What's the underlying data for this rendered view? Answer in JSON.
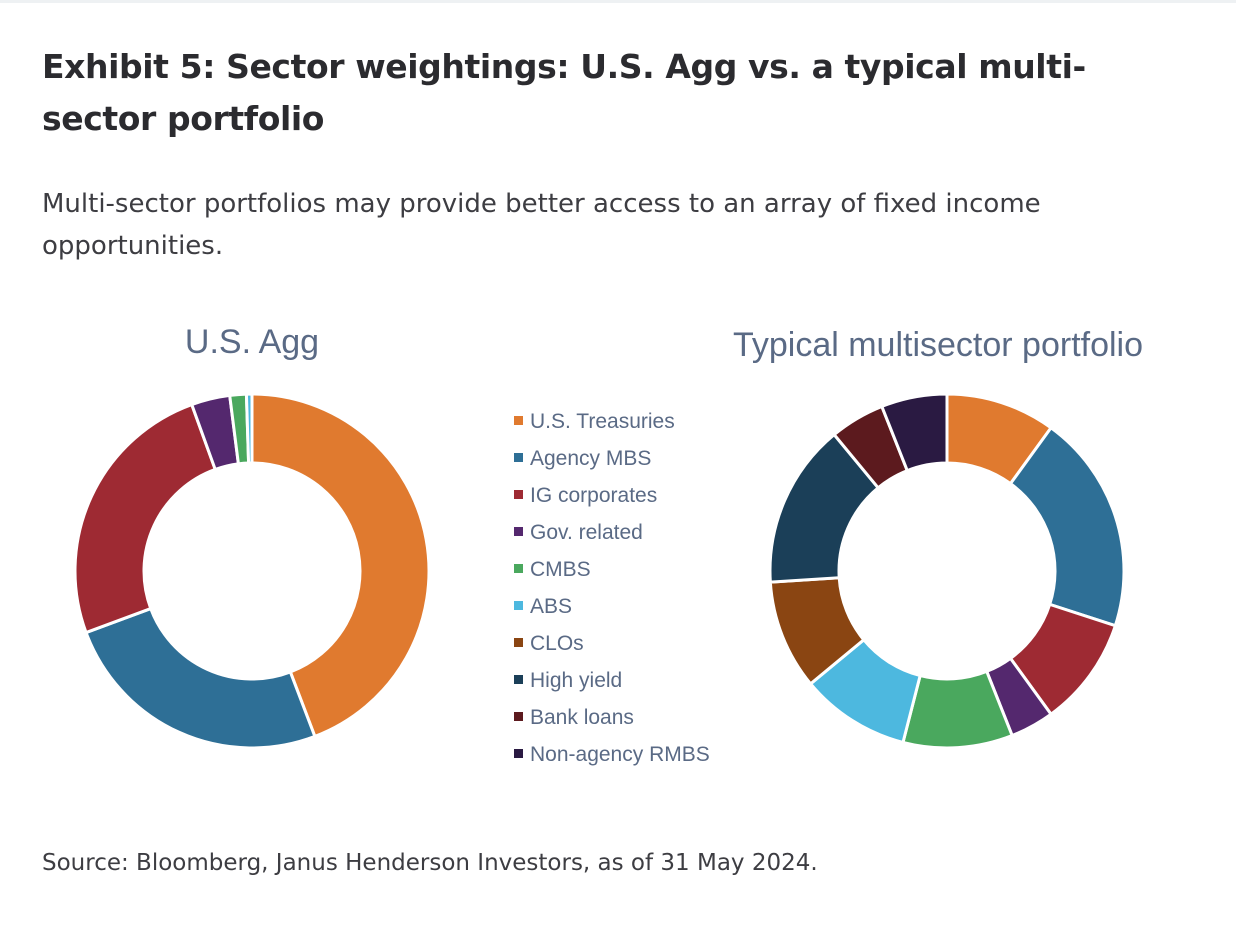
{
  "header": {
    "title": "Exhibit 5: Sector weightings: U.S. Agg vs. a typical multi-sector portfolio",
    "subtitle": "Multi-sector portfolios may provide better access to an array of fixed income opportunities."
  },
  "footer": {
    "source": "Source: Bloomberg, Janus Henderson Investors, as of 31 May 2024."
  },
  "chart_data": [
    {
      "type": "pie",
      "subtype": "donut",
      "title": "U.S. Agg",
      "categories": [
        "U.S. Treasuries",
        "Agency MBS",
        "IG corporates",
        "Gov. related",
        "CMBS",
        "ABS"
      ],
      "values": [
        44,
        25,
        25,
        3.5,
        1.5,
        0.5
      ],
      "colors": [
        "#e07a2f",
        "#2e6f96",
        "#9e2a33",
        "#54286e",
        "#4aa85e",
        "#4db8df"
      ]
    },
    {
      "type": "pie",
      "subtype": "donut",
      "title": "Typical multisector portfolio",
      "categories": [
        "U.S. Treasuries",
        "Agency MBS",
        "IG corporates",
        "Gov. related",
        "CMBS",
        "ABS",
        "CLOs",
        "High yield",
        "Bank loans",
        "Non-agency RMBS"
      ],
      "values": [
        10,
        20,
        10,
        4,
        10,
        10,
        10,
        15,
        5,
        6
      ],
      "colors": [
        "#e07a2f",
        "#2e6f96",
        "#9e2a33",
        "#54286e",
        "#4aa85e",
        "#4db8df",
        "#8a4512",
        "#1b3f58",
        "#5c1a1e",
        "#2a1a42"
      ]
    }
  ],
  "legend": {
    "placement": "center",
    "items": [
      {
        "label": "U.S. Treasuries",
        "color": "#e07a2f"
      },
      {
        "label": "Agency MBS",
        "color": "#2e6f96"
      },
      {
        "label": "IG corporates",
        "color": "#9e2a33"
      },
      {
        "label": "Gov. related",
        "color": "#54286e"
      },
      {
        "label": "CMBS",
        "color": "#4aa85e"
      },
      {
        "label": "ABS",
        "color": "#4db8df"
      },
      {
        "label": "CLOs",
        "color": "#8a4512"
      },
      {
        "label": "High yield",
        "color": "#1b3f58"
      },
      {
        "label": "Bank loans",
        "color": "#5c1a1e"
      },
      {
        "label": "Non-agency RMBS",
        "color": "#2a1a42"
      }
    ]
  }
}
